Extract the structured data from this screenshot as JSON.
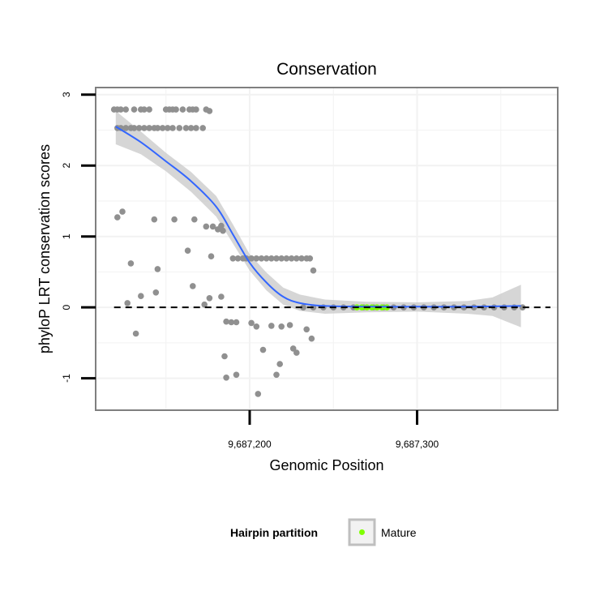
{
  "chart_data": {
    "type": "scatter",
    "title": "Conservation",
    "xlabel": "Genomic Position",
    "ylabel": "phyloP LRT conservation scores",
    "xlim": [
      9687108,
      9687384
    ],
    "ylim": [
      -1.45,
      3.1
    ],
    "x_ticks": [
      {
        "value": 9687200,
        "label": "9,687,200"
      },
      {
        "value": 9687300,
        "label": "9,687,300"
      }
    ],
    "y_ticks": [
      {
        "value": -1,
        "label": "-1"
      },
      {
        "value": 0,
        "label": "0"
      },
      {
        "value": 1,
        "label": "1"
      },
      {
        "value": 2,
        "label": "2"
      },
      {
        "value": 3,
        "label": "3"
      }
    ],
    "reference_line_y": 0,
    "points": [
      [
        9687119,
        2.79
      ],
      [
        9687121,
        2.79
      ],
      [
        9687123,
        2.79
      ],
      [
        9687126,
        2.79
      ],
      [
        9687131,
        2.79
      ],
      [
        9687135,
        2.79
      ],
      [
        9687137,
        2.79
      ],
      [
        9687140,
        2.79
      ],
      [
        9687150,
        2.79
      ],
      [
        9687152,
        2.79
      ],
      [
        9687154,
        2.79
      ],
      [
        9687156,
        2.79
      ],
      [
        9687160,
        2.79
      ],
      [
        9687164,
        2.79
      ],
      [
        9687166,
        2.79
      ],
      [
        9687168,
        2.79
      ],
      [
        9687174,
        2.79
      ],
      [
        9687176,
        2.77
      ],
      [
        9687121,
        2.53
      ],
      [
        9687123,
        2.53
      ],
      [
        9687126,
        2.53
      ],
      [
        9687129,
        2.53
      ],
      [
        9687131,
        2.53
      ],
      [
        9687134,
        2.53
      ],
      [
        9687137,
        2.53
      ],
      [
        9687140,
        2.53
      ],
      [
        9687143,
        2.53
      ],
      [
        9687145,
        2.53
      ],
      [
        9687148,
        2.53
      ],
      [
        9687151,
        2.53
      ],
      [
        9687154,
        2.53
      ],
      [
        9687158,
        2.53
      ],
      [
        9687162,
        2.53
      ],
      [
        9687165,
        2.53
      ],
      [
        9687168,
        2.53
      ],
      [
        9687172,
        2.53
      ],
      [
        9687121,
        1.27
      ],
      [
        9687124,
        1.35
      ],
      [
        9687143,
        1.24
      ],
      [
        9687155,
        1.24
      ],
      [
        9687167,
        1.24
      ],
      [
        9687174,
        1.14
      ],
      [
        9687178,
        1.14
      ],
      [
        9687181,
        1.1
      ],
      [
        9687183,
        1.15
      ],
      [
        9687184,
        1.08
      ],
      [
        9687163,
        0.8
      ],
      [
        9687177,
        0.72
      ],
      [
        9687129,
        0.62
      ],
      [
        9687145,
        0.54
      ],
      [
        9687166,
        0.3
      ],
      [
        9687135,
        0.16
      ],
      [
        9687144,
        0.21
      ],
      [
        9687173,
        0.04
      ],
      [
        9687176,
        0.13
      ],
      [
        9687183,
        0.15
      ],
      [
        9687127,
        0.06
      ],
      [
        9687132,
        -0.37
      ],
      [
        9687190,
        0.69
      ],
      [
        9687193,
        0.69
      ],
      [
        9687196,
        0.69
      ],
      [
        9687198,
        0.69
      ],
      [
        9687201,
        0.69
      ],
      [
        9687204,
        0.69
      ],
      [
        9687207,
        0.69
      ],
      [
        9687210,
        0.69
      ],
      [
        9687213,
        0.69
      ],
      [
        9687216,
        0.69
      ],
      [
        9687219,
        0.69
      ],
      [
        9687222,
        0.69
      ],
      [
        9687225,
        0.69
      ],
      [
        9687228,
        0.69
      ],
      [
        9687231,
        0.69
      ],
      [
        9687234,
        0.69
      ],
      [
        9687236,
        0.69
      ],
      [
        9687238,
        0.52
      ],
      [
        9687186,
        -0.2
      ],
      [
        9687189,
        -0.21
      ],
      [
        9687192,
        -0.21
      ],
      [
        9687201,
        -0.22
      ],
      [
        9687204,
        -0.27
      ],
      [
        9687213,
        -0.26
      ],
      [
        9687219,
        -0.27
      ],
      [
        9687224,
        -0.25
      ],
      [
        9687234,
        -0.31
      ],
      [
        9687237,
        -0.44
      ],
      [
        9687226,
        -0.58
      ],
      [
        9687228,
        -0.64
      ],
      [
        9687208,
        -0.6
      ],
      [
        9687185,
        -0.69
      ],
      [
        9687186,
        -0.99
      ],
      [
        9687192,
        -0.95
      ],
      [
        9687218,
        -0.8
      ],
      [
        9687216,
        -0.95
      ],
      [
        9687205,
        -1.22
      ],
      [
        9687232,
        0.0
      ],
      [
        9687238,
        0.0
      ],
      [
        9687244,
        0.0
      ],
      [
        9687250,
        0.0
      ],
      [
        9687256,
        0.0
      ],
      [
        9687262,
        0.0
      ],
      [
        9687268,
        0.0
      ],
      [
        9687274,
        0.0
      ],
      [
        9687280,
        0.0
      ],
      [
        9687286,
        0.0
      ],
      [
        9687292,
        0.0
      ],
      [
        9687298,
        0.0
      ],
      [
        9687304,
        0.0
      ],
      [
        9687310,
        0.0
      ],
      [
        9687316,
        0.0
      ],
      [
        9687322,
        0.0
      ],
      [
        9687328,
        0.0
      ],
      [
        9687334,
        0.0
      ],
      [
        9687340,
        0.0
      ],
      [
        9687346,
        0.0
      ],
      [
        9687352,
        0.0
      ],
      [
        9687358,
        0.0
      ],
      [
        9687363,
        0.0
      ]
    ],
    "mature_points": [
      [
        9687264,
        0.0
      ],
      [
        9687267,
        0.0
      ],
      [
        9687270,
        0.0
      ],
      [
        9687273,
        0.0
      ],
      [
        9687276,
        0.0
      ],
      [
        9687279,
        0.0
      ],
      [
        9687282,
        0.0
      ]
    ],
    "smooth_line": [
      [
        9687120,
        2.55
      ],
      [
        9687135,
        2.33
      ],
      [
        9687150,
        2.06
      ],
      [
        9687165,
        1.78
      ],
      [
        9687180,
        1.42
      ],
      [
        9687190,
        1.03
      ],
      [
        9687200,
        0.63
      ],
      [
        9687210,
        0.35
      ],
      [
        9687220,
        0.15
      ],
      [
        9687230,
        0.06
      ],
      [
        9687245,
        0.02
      ],
      [
        9687270,
        0.01
      ],
      [
        9687300,
        0.01
      ],
      [
        9687330,
        0.01
      ],
      [
        9687362,
        0.02
      ]
    ],
    "confidence_band": {
      "x": [
        9687120,
        9687135,
        9687150,
        9687165,
        9687180,
        9687190,
        9687200,
        9687210,
        9687220,
        9687230,
        9687245,
        9687270,
        9687300,
        9687330,
        9687345,
        9687362
      ],
      "upper": [
        2.77,
        2.48,
        2.18,
        1.91,
        1.57,
        1.17,
        0.75,
        0.49,
        0.28,
        0.18,
        0.11,
        0.08,
        0.07,
        0.09,
        0.14,
        0.32
      ],
      "lower": [
        2.3,
        2.16,
        1.92,
        1.63,
        1.28,
        0.9,
        0.52,
        0.24,
        0.04,
        -0.05,
        -0.09,
        -0.07,
        -0.06,
        -0.09,
        -0.12,
        -0.28
      ]
    },
    "colors": {
      "points": "#909090",
      "mature": "#7fff00",
      "smooth": "#3366ff",
      "band": "#c8c8c8",
      "reference_line": "#000000",
      "panel_border": "#7f7f7f",
      "grid": "#f2f2f2",
      "legend_key_border": "#bfbfbf"
    },
    "legend": {
      "title": "Hairpin partition",
      "items": [
        {
          "label": "Mature",
          "color": "#7fff00"
        }
      ],
      "position": "bottom"
    }
  }
}
